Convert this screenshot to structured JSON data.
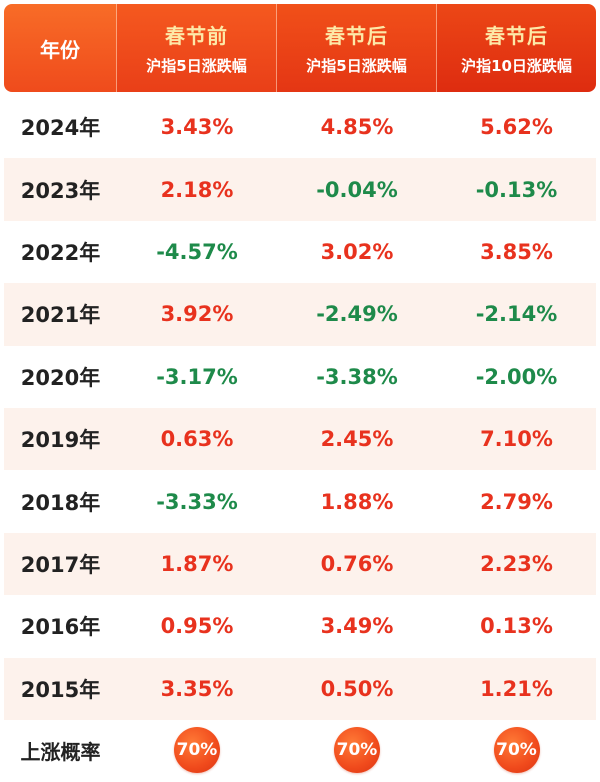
{
  "header": {
    "year_label": "年份",
    "columns": [
      {
        "title": "春节前",
        "subtitle": "沪指5日涨跌幅"
      },
      {
        "title": "春节后",
        "subtitle": "沪指5日涨跌幅"
      },
      {
        "title": "春节后",
        "subtitle": "沪指10日涨跌幅"
      }
    ]
  },
  "rows": [
    {
      "year": "2024年",
      "values": [
        "3.43%",
        "4.85%",
        "5.62%"
      ]
    },
    {
      "year": "2023年",
      "values": [
        "2.18%",
        "-0.04%",
        "-0.13%"
      ]
    },
    {
      "year": "2022年",
      "values": [
        "-4.57%",
        "3.02%",
        "3.85%"
      ]
    },
    {
      "year": "2021年",
      "values": [
        "3.92%",
        "-2.49%",
        "-2.14%"
      ]
    },
    {
      "year": "2020年",
      "values": [
        "-3.17%",
        "-3.38%",
        "-2.00%"
      ]
    },
    {
      "year": "2019年",
      "values": [
        "0.63%",
        "2.45%",
        "7.10%"
      ]
    },
    {
      "year": "2018年",
      "values": [
        "-3.33%",
        "1.88%",
        "2.79%"
      ]
    },
    {
      "year": "2017年",
      "values": [
        "1.87%",
        "0.76%",
        "2.23%"
      ]
    },
    {
      "year": "2016年",
      "values": [
        "0.95%",
        "3.49%",
        "0.13%"
      ]
    },
    {
      "year": "2015年",
      "values": [
        "3.35%",
        "0.50%",
        "1.21%"
      ]
    }
  ],
  "footer": {
    "label": "上涨概率",
    "values": [
      "70%",
      "70%",
      "70%"
    ]
  },
  "colors": {
    "up": "#e8321e",
    "down": "#1e8a4a",
    "header_accent": "#fde9a8",
    "row_alt": "#fdf2ec"
  }
}
